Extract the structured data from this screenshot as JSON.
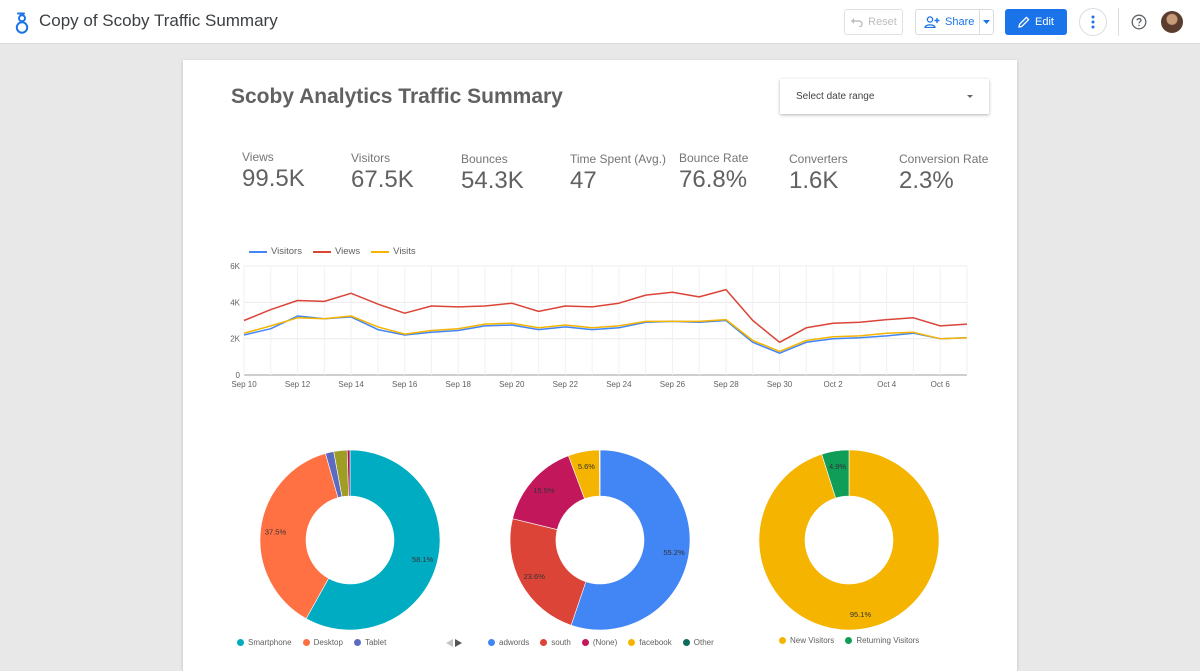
{
  "app": {
    "title": "Copy of Scoby Traffic Summary",
    "reset_label": "Reset",
    "share_label": "Share",
    "edit_label": "Edit",
    "icons": [
      "data-studio-logo-icon",
      "undo-icon",
      "person-add-icon",
      "caret-down-icon",
      "pencil-icon",
      "more-vert-icon",
      "help-icon",
      "avatar"
    ],
    "colors": {
      "accent": "#1a73e8"
    }
  },
  "report": {
    "title": "Scoby Analytics Traffic Summary",
    "date_range_placeholder": "Select date range"
  },
  "kpis": [
    {
      "label": "Views",
      "value": "99.5K"
    },
    {
      "label": "Visitors",
      "value": "67.5K"
    },
    {
      "label": "Bounces",
      "value": "54.3K"
    },
    {
      "label": "Time Spent (Avg.)",
      "value": "47"
    },
    {
      "label": "Bounce Rate",
      "value": "76.8%"
    },
    {
      "label": "Converters",
      "value": "1.6K"
    },
    {
      "label": "Conversion Rate",
      "value": "2.3%"
    }
  ],
  "chart_data": [
    {
      "type": "line",
      "x": [
        "Sep 10",
        "Sep 11",
        "Sep 12",
        "Sep 13",
        "Sep 14",
        "Sep 15",
        "Sep 16",
        "Sep 17",
        "Sep 18",
        "Sep 19",
        "Sep 20",
        "Sep 21",
        "Sep 22",
        "Sep 23",
        "Sep 24",
        "Sep 25",
        "Sep 26",
        "Sep 27",
        "Sep 28",
        "Sep 29",
        "Sep 30",
        "Oct 1",
        "Oct 2",
        "Oct 3",
        "Oct 4",
        "Oct 5",
        "Oct 6",
        "Oct 7"
      ],
      "x_tick_labels": [
        "Sep 10",
        "Sep 12",
        "Sep 14",
        "Sep 16",
        "Sep 18",
        "Sep 20",
        "Sep 22",
        "Sep 24",
        "Sep 26",
        "Sep 28",
        "Sep 30",
        "Oct 2",
        "Oct 4",
        "Oct 6"
      ],
      "y_tick_labels": [
        "0",
        "2K",
        "4K",
        "6K"
      ],
      "ylim": [
        0,
        6000
      ],
      "grid": true,
      "legend": "top-left",
      "series": [
        {
          "name": "Visitors",
          "color": "#4285f4",
          "values": [
            2200,
            2550,
            3250,
            3100,
            3200,
            2500,
            2200,
            2350,
            2450,
            2700,
            2750,
            2500,
            2650,
            2500,
            2600,
            2900,
            2950,
            2900,
            3000,
            1800,
            1200,
            1800,
            2000,
            2050,
            2150,
            2300,
            2000,
            2050
          ]
        },
        {
          "name": "Views",
          "color": "#db4437",
          "values": [
            3000,
            3600,
            4100,
            4050,
            4500,
            3900,
            3400,
            3800,
            3750,
            3800,
            3950,
            3500,
            3800,
            3750,
            3950,
            4400,
            4550,
            4300,
            4700,
            3000,
            1800,
            2600,
            2850,
            2900,
            3050,
            3150,
            2700,
            2800
          ]
        },
        {
          "name": "Visits",
          "color": "#f4b400",
          "values": [
            2300,
            2700,
            3150,
            3100,
            3250,
            2650,
            2250,
            2450,
            2550,
            2800,
            2850,
            2600,
            2750,
            2600,
            2700,
            2950,
            2950,
            2950,
            3050,
            1900,
            1300,
            1900,
            2100,
            2150,
            2300,
            2350,
            2000,
            2050
          ]
        }
      ]
    },
    {
      "type": "pie",
      "slices": [
        {
          "label": "Smartphone",
          "value": 58.1,
          "display": "58.1%",
          "color": "#00acc1"
        },
        {
          "label": "Desktop",
          "value": 37.5,
          "display": "37.5%",
          "color": "#ff7043"
        },
        {
          "label": "Tablet",
          "value": 1.5,
          "display": "",
          "color": "#5c6bc0"
        },
        {
          "label": "",
          "value": 2.4,
          "display": "",
          "color": "#9e9d24"
        },
        {
          "label": "",
          "value": 0.5,
          "display": "",
          "color": "#ad1457"
        }
      ],
      "legend": "bottom"
    },
    {
      "type": "pie",
      "slices": [
        {
          "label": "adwords",
          "value": 55.2,
          "display": "55.2%",
          "color": "#4285f4"
        },
        {
          "label": "south",
          "value": 23.6,
          "display": "23.6%",
          "color": "#db4437"
        },
        {
          "label": "(None)",
          "value": 15.5,
          "display": "15.5%",
          "color": "#c2185b"
        },
        {
          "label": "facebook",
          "value": 5.6,
          "display": "5.6%",
          "color": "#f4b400"
        },
        {
          "label": "Other",
          "value": 0.1,
          "display": "",
          "color": "#0f6b5a"
        }
      ],
      "legend": "bottom"
    },
    {
      "type": "pie",
      "slices": [
        {
          "label": "New Visitors",
          "value": 95.1,
          "display": "95.1%",
          "color": "#f4b400"
        },
        {
          "label": "Returning Visitors",
          "value": 4.9,
          "display": "4.9%",
          "color": "#0f9d58"
        }
      ],
      "legend": "bottom"
    }
  ]
}
